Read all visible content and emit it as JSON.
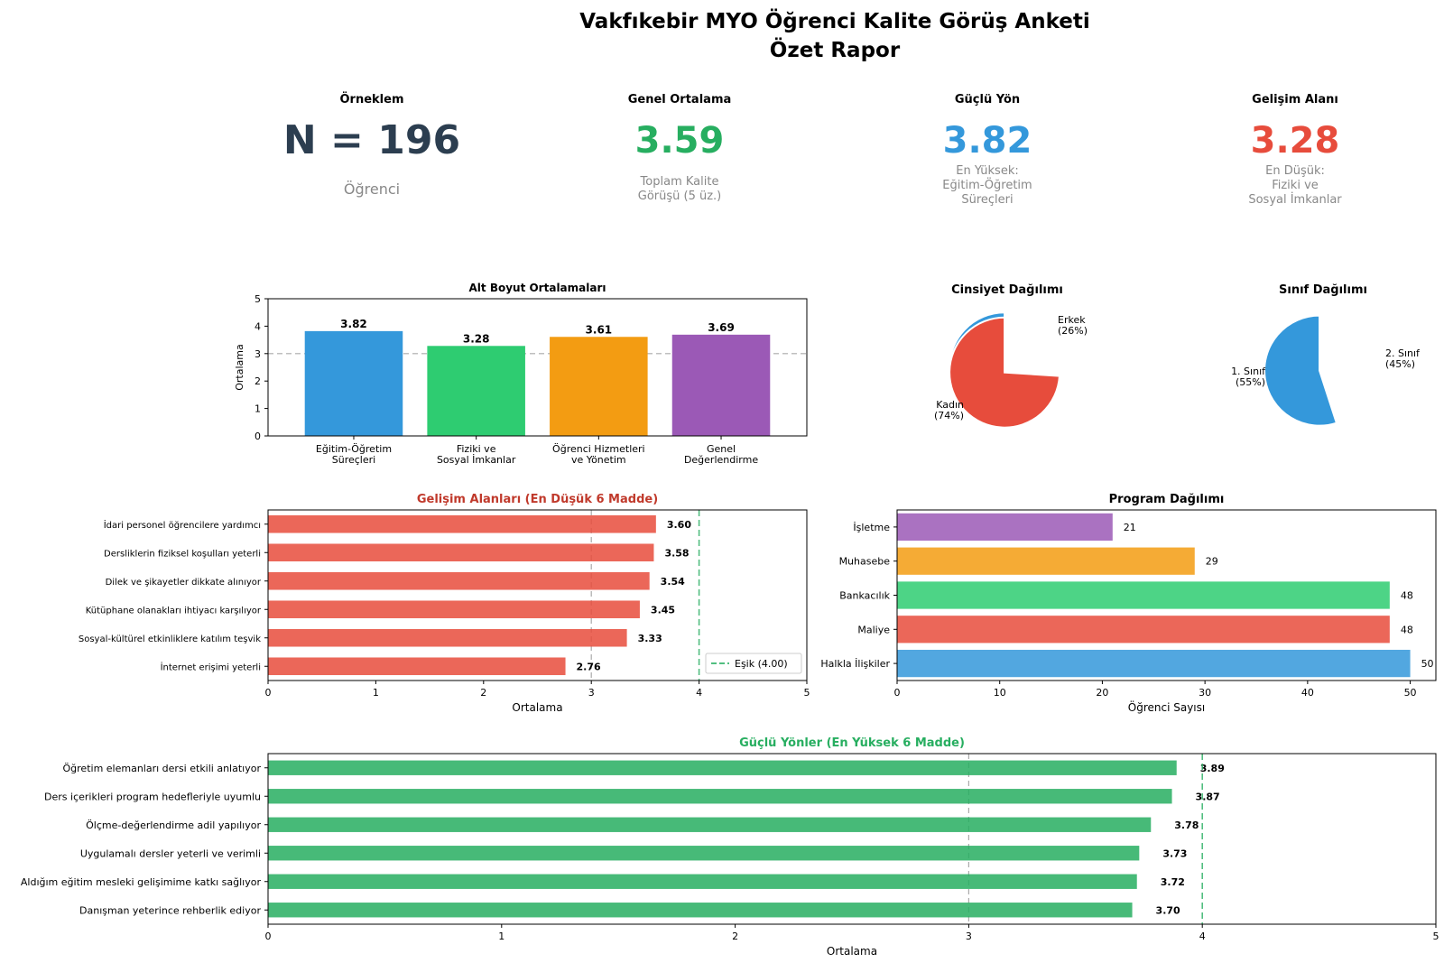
{
  "report": {
    "title_line1": "Vakfıkebir MYO Öğrenci Kalite Görüş Anketi",
    "title_line2": "Özet Rapor"
  },
  "kpis": [
    {
      "label": "Örneklem",
      "value": "N = 196",
      "sub": [
        "Öğrenci"
      ],
      "color": "#2c3e50"
    },
    {
      "label": "Genel Ortalama",
      "value": "3.59",
      "sub": [
        "Toplam Kalite",
        "Görüşü (5 üz.)"
      ],
      "color": "#27ae60"
    },
    {
      "label": "Güçlü Yön",
      "value": "3.82",
      "sub": [
        "En Yüksek:",
        "Eğitim-Öğretim",
        "Süreçleri"
      ],
      "color": "#3498db"
    },
    {
      "label": "Gelişim Alanı",
      "value": "3.28",
      "sub": [
        "En Düşük:",
        "Fiziki ve",
        "Sosyal İmkanlar"
      ],
      "color": "#e74c3c"
    }
  ],
  "chart_data": [
    {
      "id": "subdims",
      "type": "bar",
      "title": "Alt Boyut Ortalamaları",
      "categories": [
        [
          "Eğitim-Öğretim",
          "Süreçleri"
        ],
        [
          "Fiziki ve",
          "Sosyal İmkanlar"
        ],
        [
          "Öğrenci Hizmetleri",
          "ve Yönetim"
        ],
        [
          "Genel",
          "Değerlendirme"
        ]
      ],
      "values": [
        3.82,
        3.28,
        3.61,
        3.69
      ],
      "labels": [
        "3.82",
        "3.28",
        "3.61",
        "3.69"
      ],
      "colors": [
        "#3498db",
        "#2ecc71",
        "#f39c12",
        "#9b59b6"
      ],
      "xlabel": "",
      "ylabel": "Ortalama",
      "ylim": [
        0,
        5
      ],
      "yticks": [
        "0",
        "1",
        "2",
        "3",
        "4",
        "5"
      ],
      "reference_line": 3
    },
    {
      "id": "gender",
      "type": "pie",
      "title": "Cinsiyet Dağılımı",
      "slices": [
        {
          "label": "Erkek",
          "pct_label": "(26%)",
          "value": 26,
          "color": "#3498db"
        },
        {
          "label": "Kadın",
          "pct_label": "(74%)",
          "value": 74,
          "color": "#e74c3c"
        }
      ]
    },
    {
      "id": "grade",
      "type": "pie",
      "title": "Sınıf Dağılımı",
      "slices": [
        {
          "label": "2. Sınıf",
          "pct_label": "(45%)",
          "value": 45,
          "color": "#e74c3c"
        },
        {
          "label": "1. Sınıf",
          "pct_label": "(55%)",
          "value": 55,
          "color": "#3498db"
        }
      ]
    },
    {
      "id": "weak",
      "type": "bar",
      "orientation": "horizontal",
      "title": "Gelişim Alanları (En Düşük 6 Madde)",
      "title_color": "#c0392b",
      "categories": [
        "İdari personel öğrencilere yardımcı",
        "Dersliklerin fiziksel koşulları yeterli",
        "Dilek ve şikayetler dikkate alınıyor",
        "Kütüphane olanakları ihtiyacı karşılıyor",
        "Sosyal-kültürel etkinliklere katılım teşvik",
        "İnternet erişimi yeterli"
      ],
      "values": [
        3.6,
        3.58,
        3.54,
        3.45,
        3.33,
        2.76
      ],
      "labels": [
        "3.60",
        "3.58",
        "3.54",
        "3.45",
        "3.33",
        "2.76"
      ],
      "color": "#e74c3c",
      "xlabel": "Ortalama",
      "xlim": [
        0,
        5
      ],
      "xticks": [
        "0",
        "1",
        "2",
        "3",
        "4",
        "5"
      ],
      "reference_line": 3,
      "threshold": 4,
      "legend": "Eşik (4.00)",
      "legend_position": "lower-right"
    },
    {
      "id": "programs",
      "type": "bar",
      "orientation": "horizontal",
      "title": "Program Dağılımı",
      "categories": [
        "İşletme",
        "Muhasebe",
        "Bankacılık",
        "Maliye",
        "Halkla İlişkiler"
      ],
      "values": [
        21,
        29,
        48,
        48,
        50
      ],
      "labels": [
        "21",
        "29",
        "48",
        "48",
        "50"
      ],
      "colors": [
        "#9b59b6",
        "#f39c12",
        "#2ecc71",
        "#e74c3c",
        "#3498db"
      ],
      "xlabel": "Öğrenci Sayısı",
      "xlim": [
        0,
        52.5
      ],
      "xticks": [
        "0",
        "10",
        "20",
        "30",
        "40",
        "50"
      ]
    },
    {
      "id": "strong",
      "type": "bar",
      "orientation": "horizontal",
      "title": "Güçlü Yönler (En Yüksek 6 Madde)",
      "title_color": "#27ae60",
      "categories": [
        "Öğretim elemanları dersi etkili anlatıyor",
        "Ders içerikleri program hedefleriyle uyumlu",
        "Ölçme-değerlendirme adil yapılıyor",
        "Uygulamalı dersler yeterli ve verimli",
        "Aldığım eğitim mesleki gelişimime katkı sağlıyor",
        "Danışman yeterince rehberlik ediyor"
      ],
      "values": [
        3.89,
        3.87,
        3.78,
        3.73,
        3.72,
        3.7
      ],
      "labels": [
        "3.89",
        "3.87",
        "3.78",
        "3.73",
        "3.72",
        "3.70"
      ],
      "color": "#27ae60",
      "xlabel": "Ortalama",
      "xlim": [
        0,
        5
      ],
      "xticks": [
        "0",
        "1",
        "2",
        "3",
        "4",
        "5"
      ],
      "reference_line": 3,
      "threshold": 4
    }
  ]
}
